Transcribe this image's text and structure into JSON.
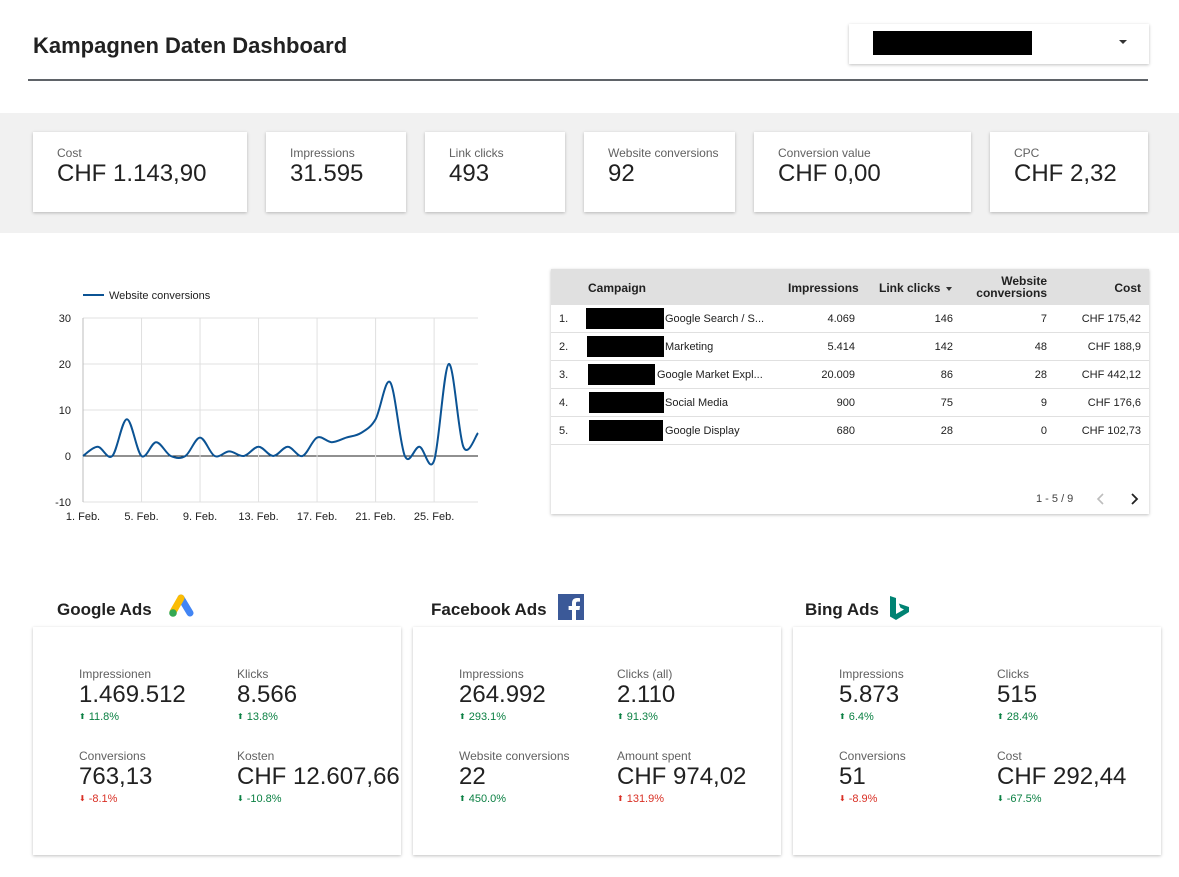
{
  "header": {
    "title": "Kampagnen Daten Dashboard",
    "filter_value": ""
  },
  "kpis": [
    {
      "label": "Cost",
      "value": "CHF 1.143,90"
    },
    {
      "label": "Impressions",
      "value": "31.595"
    },
    {
      "label": "Link clicks",
      "value": "493"
    },
    {
      "label": "Website conversions",
      "value": "92"
    },
    {
      "label": "Conversion value",
      "value": "CHF 0,00"
    },
    {
      "label": "CPC",
      "value": "CHF 2,32"
    }
  ],
  "chart_data": {
    "type": "line",
    "title": "",
    "legend_position": "top-left",
    "grid": true,
    "series": [
      {
        "name": "Website conversions",
        "color": "#0b5394",
        "values": [
          0,
          2,
          0,
          8,
          0,
          3,
          0,
          0,
          4,
          0,
          1,
          0,
          2,
          0,
          2,
          0,
          4,
          3,
          4,
          5,
          8,
          16,
          0,
          2,
          -1,
          20,
          2,
          5
        ]
      }
    ],
    "x": [
      "1. Feb.",
      "2. Feb.",
      "3. Feb.",
      "4. Feb.",
      "5. Feb.",
      "6. Feb.",
      "7. Feb.",
      "8. Feb.",
      "9. Feb.",
      "10. Feb.",
      "11. Feb.",
      "12. Feb.",
      "13. Feb.",
      "14. Feb.",
      "15. Feb.",
      "16. Feb.",
      "17. Feb.",
      "18. Feb.",
      "19. Feb.",
      "20. Feb.",
      "21. Feb.",
      "22. Feb.",
      "23. Feb.",
      "24. Feb.",
      "25. Feb.",
      "26. Feb.",
      "27. Feb.",
      "28. Feb."
    ],
    "xticks": [
      "1. Feb.",
      "5. Feb.",
      "9. Feb.",
      "13. Feb.",
      "17. Feb.",
      "21. Feb.",
      "25. Feb."
    ],
    "yticks": [
      30,
      20,
      10,
      0,
      -10
    ],
    "ylim": [
      -10,
      30
    ]
  },
  "table": {
    "headers": {
      "campaign": "Campaign",
      "impressions": "Impressions",
      "link_clicks": "Link clicks",
      "conv_line1": "Website",
      "conv_line2": "conversions",
      "cost": "Cost"
    },
    "rows": [
      {
        "num": "1.",
        "campaign": "Google Search / S...",
        "impressions": "4.069",
        "clicks": "146",
        "conversions": "7",
        "cost": "CHF 175,42"
      },
      {
        "num": "2.",
        "campaign": "Marketing",
        "impressions": "5.414",
        "clicks": "142",
        "conversions": "48",
        "cost": "CHF 188,9"
      },
      {
        "num": "3.",
        "campaign": "Google Market Expl...",
        "impressions": "20.009",
        "clicks": "86",
        "conversions": "28",
        "cost": "CHF 442,12"
      },
      {
        "num": "4.",
        "campaign": "Social Media",
        "impressions": "900",
        "clicks": "75",
        "conversions": "9",
        "cost": "CHF 176,6"
      },
      {
        "num": "5.",
        "campaign": "Google Display",
        "impressions": "680",
        "clicks": "28",
        "conversions": "0",
        "cost": "CHF 102,73"
      }
    ],
    "pagination": "1 - 5 / 9"
  },
  "platforms": {
    "google": {
      "title": "Google Ads",
      "logo_icon": "google-ads-logo",
      "metrics": [
        {
          "label": "Impressionen",
          "value": "1.469.512",
          "delta": "11.8%",
          "direction": "up"
        },
        {
          "label": "Klicks",
          "value": "8.566",
          "delta": "13.8%",
          "direction": "up"
        },
        {
          "label": "Conversions",
          "value": "763,13",
          "delta": "-8.1%",
          "direction": "down"
        },
        {
          "label": "Kosten",
          "value": "CHF 12.607,66",
          "delta": "-10.8%",
          "direction": "down-good"
        }
      ]
    },
    "facebook": {
      "title": "Facebook Ads",
      "logo_icon": "facebook-logo",
      "metrics": [
        {
          "label": "Impressions",
          "value": "264.992",
          "delta": "293.1%",
          "direction": "up"
        },
        {
          "label": "Clicks (all)",
          "value": "2.110",
          "delta": "91.3%",
          "direction": "up"
        },
        {
          "label": "Website conversions",
          "value": "22",
          "delta": "450.0%",
          "direction": "up"
        },
        {
          "label": "Amount spent",
          "value": "CHF 974,02",
          "delta": "131.9%",
          "direction": "up-bad"
        }
      ]
    },
    "bing": {
      "title": "Bing Ads",
      "logo_icon": "bing-logo",
      "metrics": [
        {
          "label": "Impressions",
          "value": "5.873",
          "delta": "6.4%",
          "direction": "up"
        },
        {
          "label": "Clicks",
          "value": "515",
          "delta": "28.4%",
          "direction": "up"
        },
        {
          "label": "Conversions",
          "value": "51",
          "delta": "-8.9%",
          "direction": "down"
        },
        {
          "label": "Cost",
          "value": "CHF 292,44",
          "delta": "-67.5%",
          "direction": "down-good"
        }
      ]
    }
  },
  "colors": {
    "line": "#0b5394",
    "positive": "#0b8043",
    "negative": "#d93025",
    "band": "#f1f1f1"
  }
}
